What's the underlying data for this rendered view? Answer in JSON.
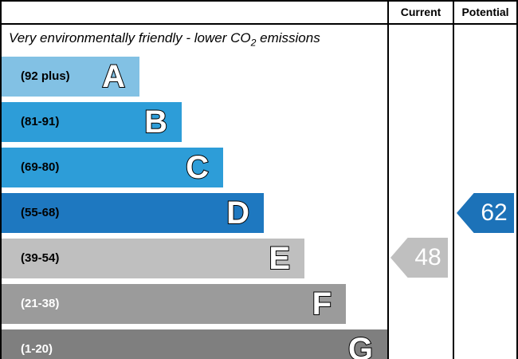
{
  "header": {
    "current_label": "Current",
    "potential_label": "Potential"
  },
  "chart_data": {
    "type": "bar",
    "title": "Very environmentally friendly - lower CO2 emissions",
    "title_parts": {
      "prefix": "Very environmentally friendly - lower CO",
      "sub": "2",
      "suffix": " emissions"
    },
    "bands": [
      {
        "letter": "A",
        "range": "(92 plus)",
        "color": "#82c1e4",
        "label_color": "#000000"
      },
      {
        "letter": "B",
        "range": "(81-91)",
        "color": "#2d9dd8",
        "label_color": "#000000"
      },
      {
        "letter": "C",
        "range": "(69-80)",
        "color": "#2d9dd8",
        "label_color": "#000000"
      },
      {
        "letter": "D",
        "range": "(55-68)",
        "color": "#1e78c0",
        "label_color": "#000000"
      },
      {
        "letter": "E",
        "range": "(39-54)",
        "color": "#bfbfbf",
        "label_color": "#000000"
      },
      {
        "letter": "F",
        "range": "(21-38)",
        "color": "#9b9b9b",
        "label_color": "#ffffff"
      },
      {
        "letter": "G",
        "range": "(1-20)",
        "color": "#7f7f7f",
        "label_color": "#ffffff"
      }
    ],
    "current": {
      "value": "48",
      "band": "E",
      "arrow_color": "#bfbfbf",
      "text_color": "#ffffff"
    },
    "potential": {
      "value": "62",
      "band": "D",
      "arrow_color": "#1c72b8",
      "text_color": "#ffffff"
    },
    "legend_position": "top-right-columns",
    "grid": false
  }
}
